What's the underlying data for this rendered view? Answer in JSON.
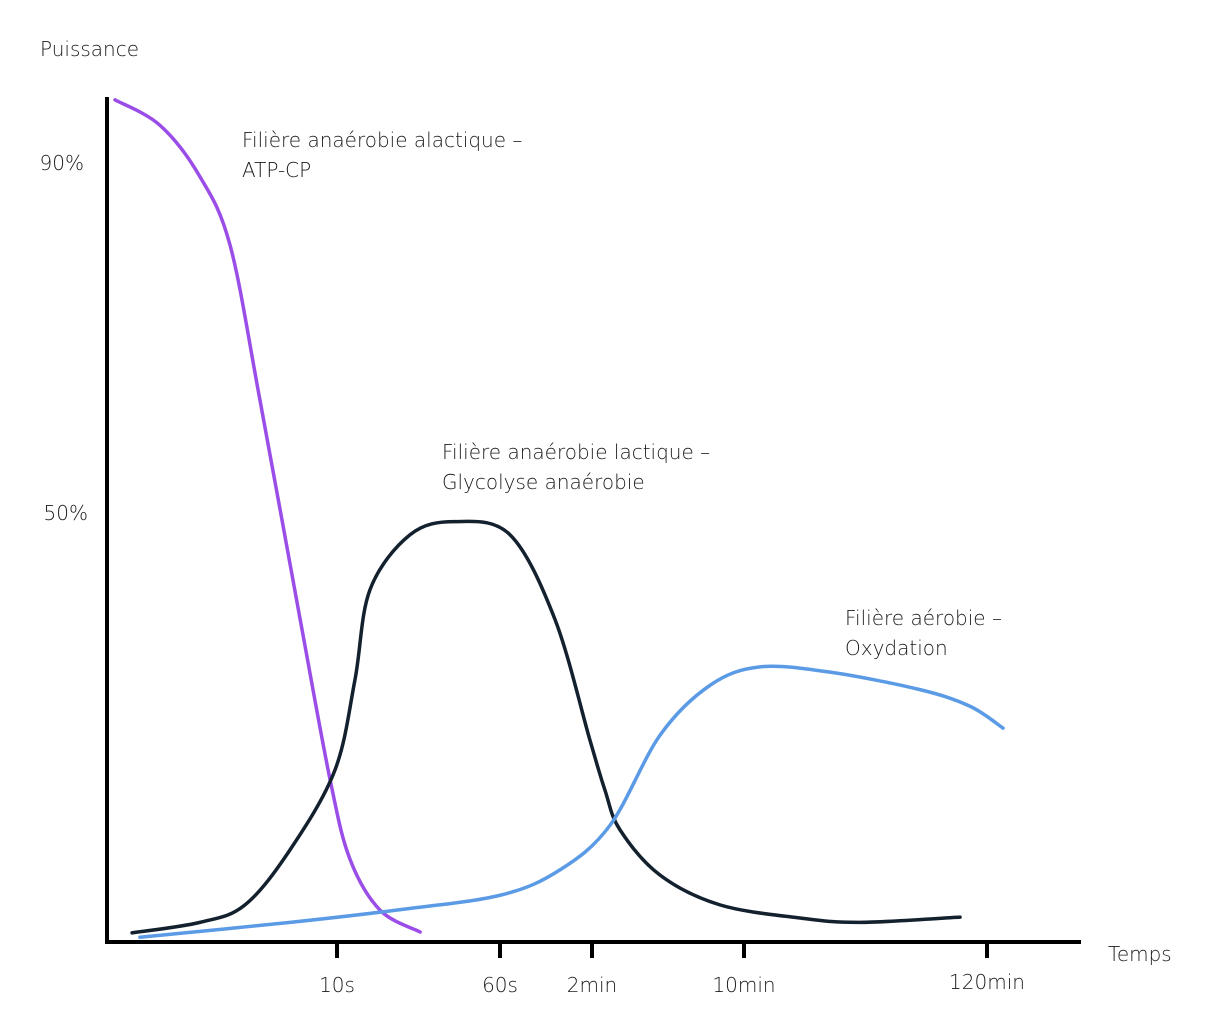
{
  "chart_data": {
    "type": "line",
    "title": "",
    "xlabel": "Temps",
    "ylabel": "Puissance",
    "x_unit": "seconds",
    "x_ticks": [
      {
        "value": 10,
        "label": "10s"
      },
      {
        "value": 60,
        "label": "60s"
      },
      {
        "value": 120,
        "label": "2min"
      },
      {
        "value": 600,
        "label": "10min"
      },
      {
        "value": 7200,
        "label": "120min"
      }
    ],
    "y_ticks": [
      {
        "value": 90,
        "label": "90%"
      },
      {
        "value": 50,
        "label": "50%"
      }
    ],
    "grid": false,
    "series": [
      {
        "name": "Filière anaérobie alactique – ATP-CP",
        "label_lines": [
          "Filière anaérobie alactique –",
          "ATP-CP"
        ],
        "color": "#9b4de8",
        "x": [
          0.35,
          2.3,
          4.0,
          5.35,
          6.65,
          8.4,
          9.7,
          14,
          23.2,
          35.5
        ],
        "y": [
          97.1,
          94.2,
          88.5,
          80.5,
          62.8,
          37.7,
          19.4,
          10.3,
          4.5,
          2
        ]
      },
      {
        "name": "Filière anaérobie lactique – Glycolyse anaérobie",
        "label_lines": [
          "Filière anaérobie lactique –",
          "Glycolyse anaérobie"
        ],
        "color": "#13202e",
        "x": [
          1.09,
          4.04,
          6.0,
          7.96,
          9.91,
          15.5,
          20.1,
          32.4,
          46.2,
          66.5,
          95.9,
          118.7,
          161,
          208,
          335,
          524,
          2121,
          3751,
          6467
        ],
        "y": [
          1.9,
          3.1,
          5.1,
          11.4,
          20.5,
          30.8,
          41.1,
          47.4,
          48.9,
          47.4,
          37.7,
          23.9,
          18.2,
          13.7,
          8.5,
          5.1,
          3.6,
          3.1,
          3.7
        ]
      },
      {
        "name": "Filière aérobie – Oxydation",
        "label_lines": [
          "Filière aérobie –",
          "Oxydation"
        ],
        "color": "#5b9be6",
        "x": [
          1.43,
          7.96,
          28.2,
          60,
          99.1,
          177,
          335,
          493,
          1035,
          2936,
          5380,
          6738,
          7635
        ],
        "y": [
          1.4,
          3.1,
          4.5,
          6.2,
          9.1,
          14.2,
          24.5,
          30.2,
          32.3,
          31.7,
          29.7,
          27.8,
          25.3
        ]
      }
    ]
  }
}
